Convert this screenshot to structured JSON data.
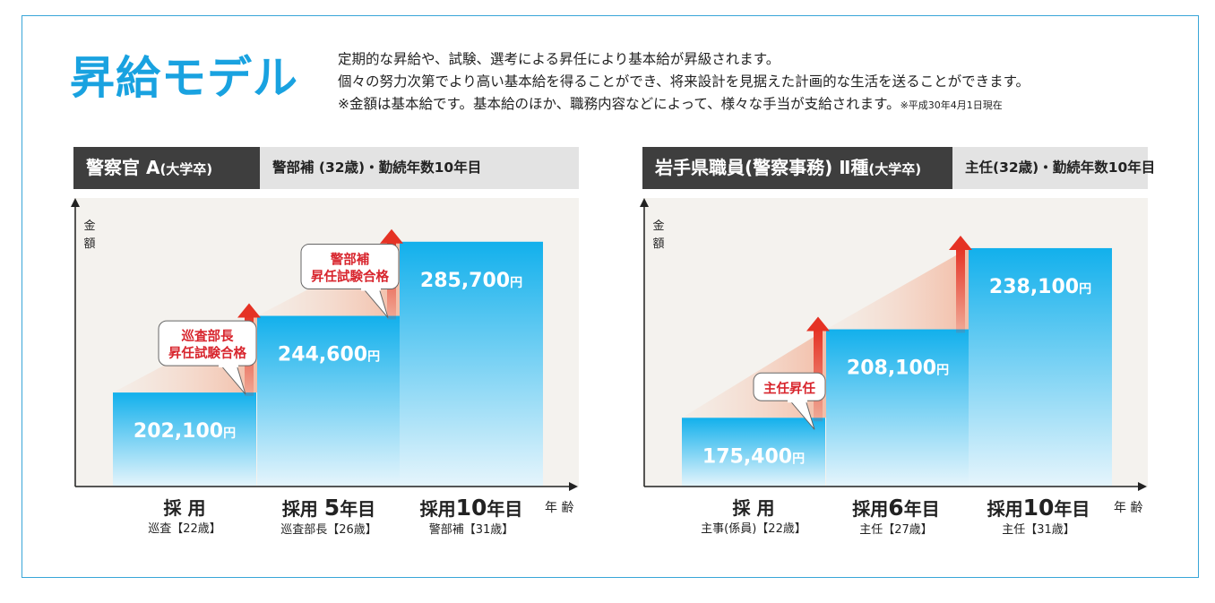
{
  "title": "昇給モデル",
  "description": {
    "line1": "定期的な昇給や、試験、選考による昇任により基本給が昇級されます。",
    "line2": "個々の努力次第でより高い基本給を得ることができ、将来設計を見据えた計画的な生活を送ることができます。",
    "line3": "※金額は基本給です。基本給のほか、職務内容などによって、様々な手当が支給されます。",
    "line3_note": "※平成30年4月1日現在"
  },
  "colors": {
    "accent": "#19a2e0",
    "bar_top": "#12b0ec",
    "bar_bottom": "#e6f5fc",
    "arrow": "#e53224",
    "callout": "#d8262e"
  },
  "chart_data": [
    {
      "type": "bar",
      "header_main": "警察官 A",
      "header_sub": "(大学卒)",
      "header_detail": "警部補 (32歳)・勤続年数10年目",
      "ylabel": "金額",
      "xlabel": "年 齢",
      "ylim": [
        150000,
        300000
      ],
      "categories": [
        {
          "prefix": "採 用",
          "num": "",
          "suffix": "",
          "sub": "巡査【22歳】"
        },
        {
          "prefix": "採用",
          "num": "5",
          "suffix": "年目",
          "sub": "巡査部長【26歳】"
        },
        {
          "prefix": "採用",
          "num": "10",
          "suffix": "年目",
          "sub": "警部補【31歳】"
        }
      ],
      "values": [
        202100,
        244600,
        285700
      ],
      "value_labels": [
        "202,100",
        "244,600",
        "285,700"
      ],
      "unit": "円",
      "annotations": [
        {
          "at_index": 1,
          "lines": [
            "巡査部長",
            "昇任試験合格"
          ]
        },
        {
          "at_index": 2,
          "lines": [
            "警部補",
            "昇任試験合格"
          ]
        }
      ]
    },
    {
      "type": "bar",
      "header_main": "岩手県職員(警察事務) Ⅱ種",
      "header_sub": "(大学卒)",
      "header_detail": "主任(32歳)・勤続年数10年目",
      "ylabel": "金額",
      "xlabel": "年 齢",
      "ylim": [
        150000,
        250000
      ],
      "categories": [
        {
          "prefix": "採 用",
          "num": "",
          "suffix": "",
          "sub": "主事(係員)【22歳】"
        },
        {
          "prefix": "採用",
          "num": "6",
          "suffix": "年目",
          "sub": "主任【27歳】"
        },
        {
          "prefix": "採用",
          "num": "10",
          "suffix": "年目",
          "sub": "主任【31歳】"
        }
      ],
      "values": [
        175400,
        208100,
        238100
      ],
      "value_labels": [
        "175,400",
        "208,100",
        "238,100"
      ],
      "unit": "円",
      "annotations": [
        {
          "at_index": 1,
          "lines": [
            "主任昇任"
          ]
        }
      ]
    }
  ]
}
